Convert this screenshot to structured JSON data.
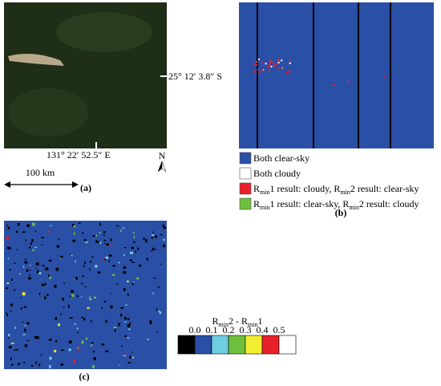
{
  "panel_a": {
    "lat_label": "25° 12′ 3.8″ S",
    "lon_label": "131° 22′ 52.5″ E",
    "north": "N",
    "scale_label": "100 km",
    "caption": "(a)"
  },
  "panel_b": {
    "legend": [
      {
        "color": "#2a4fa6",
        "parts": [
          "Both clear-sky"
        ]
      },
      {
        "color": "#ffffff",
        "parts": [
          "Both cloudy"
        ]
      },
      {
        "color": "#e8202a",
        "parts": [
          "R",
          "min",
          "1 result: cloudy, R",
          "min",
          "2 result: clear-sky"
        ]
      },
      {
        "color": "#6fbf3f",
        "parts": [
          "R",
          "min",
          "1 result: clear-sky, R",
          "min",
          "2 result: cloudy"
        ]
      }
    ],
    "caption": "(b)"
  },
  "panel_c": {
    "colorbar": {
      "title_parts": [
        "R",
        "min",
        "2 - R",
        "min",
        "1"
      ],
      "colors": [
        "#000000",
        "#2a4fa6",
        "#6ecde0",
        "#6fbf3f",
        "#f2ee32",
        "#e8202a",
        "#ffffff"
      ],
      "ticks": [
        "0.0",
        "0.1",
        "0.2",
        "0.3",
        "0.4",
        "0.5"
      ]
    },
    "caption": "(c)"
  }
}
